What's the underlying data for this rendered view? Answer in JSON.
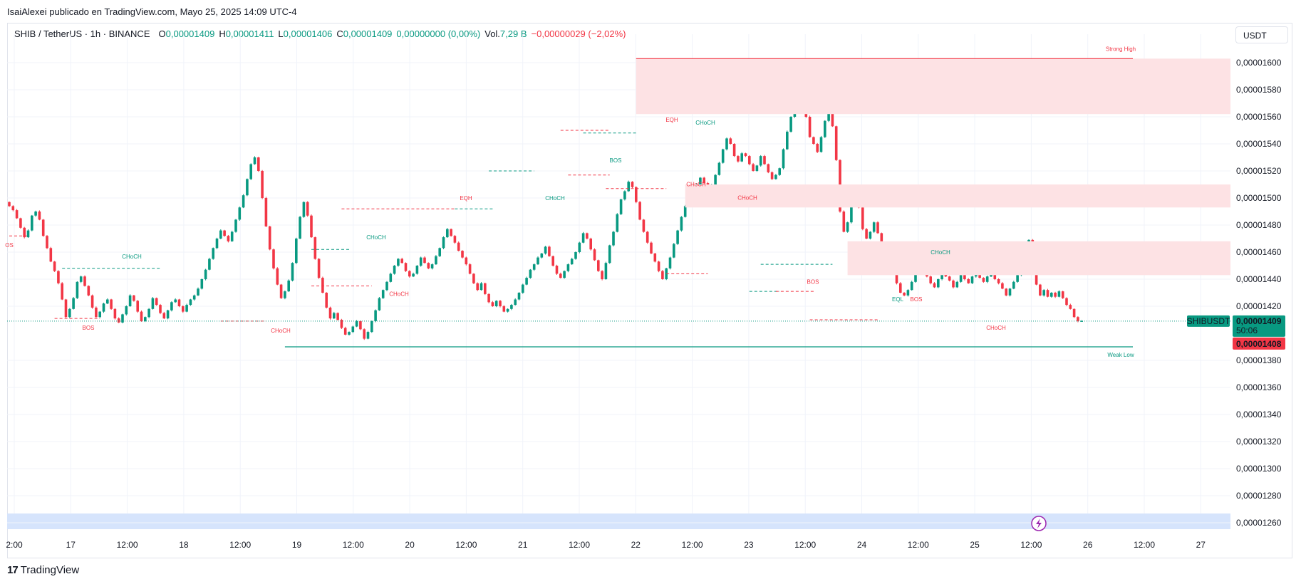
{
  "header": {
    "publisher": "IsaiAlexei publicado en TradingView.com, Mayo 25, 2025 14:09 UTC-4"
  },
  "legend": {
    "symbol": "SHIB / TetherUS · 1h · BINANCE",
    "o_label": "O",
    "o_value": "0,00001409",
    "h_label": "H",
    "h_value": "0,00001411",
    "l_label": "L",
    "l_value": "0,00001406",
    "c_label": "C",
    "c_value": "0,00001409",
    "change": "0,00000000 (0,00%)",
    "vol_label": "Vol.",
    "vol_value": "7,29 B",
    "period_change": "−0,00000029 (−2,02%)"
  },
  "toolbar": {
    "currency": "USDT"
  },
  "footer": {
    "logo_text": "TradingView",
    "logo_mark": "17"
  },
  "colors": {
    "up": "#089981",
    "down": "#f23645",
    "supply_zone": "#fde2e4",
    "session_band": "#d6e4fc",
    "grid": "#f0f3fa",
    "text": "#131722",
    "last_price_bg": "#089981",
    "prev_close_bg": "#f23645"
  },
  "chart_data": {
    "type": "candlestick",
    "title": "SHIB / TetherUS · 1h · BINANCE",
    "xlabel": "",
    "ylabel": "",
    "price_axis_ticks": [
      "0,00001600",
      "0,00001580",
      "0,00001560",
      "0,00001540",
      "0,00001520",
      "0,00001500",
      "0,00001480",
      "0,00001460",
      "0,00001440",
      "0,00001420",
      "0,00001380",
      "0,00001360",
      "0,00001340",
      "0,00001320",
      "0,00001300",
      "0,00001280",
      "0,00001260"
    ],
    "ylim": [
      1.251e-05,
      1.611e-05
    ],
    "time_axis_ticks": [
      "2:00",
      "17",
      "12:00",
      "18",
      "12:00",
      "19",
      "12:00",
      "20",
      "12:00",
      "21",
      "12:00",
      "22",
      "12:00",
      "23",
      "12:00",
      "24",
      "12:00",
      "25",
      "12:00",
      "26",
      "12:00",
      "27"
    ],
    "closes": [
      1.494e-05,
      1.491e-05,
      1.485e-05,
      1.478e-05,
      1.471e-05,
      1.476e-05,
      1.487e-05,
      1.49e-05,
      1.484e-05,
      1.472e-05,
      1.463e-05,
      1.453e-05,
      1.446e-05,
      1.437e-05,
      1.425e-05,
      1.412e-05,
      1.418e-05,
      1.426e-05,
      1.438e-05,
      1.442e-05,
      1.435e-05,
      1.428e-05,
      1.419e-05,
      1.412e-05,
      1.416e-05,
      1.422e-05,
      1.425e-05,
      1.418e-05,
      1.411e-05,
      1.408e-05,
      1.414e-05,
      1.42e-05,
      1.428e-05,
      1.424e-05,
      1.416e-05,
      1.409e-05,
      1.412e-05,
      1.418e-05,
      1.426e-05,
      1.421e-05,
      1.415e-05,
      1.411e-05,
      1.417e-05,
      1.423e-05,
      1.425e-05,
      1.42e-05,
      1.416e-05,
      1.421e-05,
      1.425e-05,
      1.428e-05,
      1.433e-05,
      1.44e-05,
      1.447e-05,
      1.455e-05,
      1.463e-05,
      1.47e-05,
      1.476e-05,
      1.472e-05,
      1.468e-05,
      1.475e-05,
      1.484e-05,
      1.493e-05,
      1.502e-05,
      1.514e-05,
      1.525e-05,
      1.53e-05,
      1.52e-05,
      1.5e-05,
      1.479e-05,
      1.462e-05,
      1.448e-05,
      1.436e-05,
      1.426e-05,
      1.431e-05,
      1.439e-05,
      1.452e-05,
      1.47e-05,
      1.486e-05,
      1.497e-05,
      1.487e-05,
      1.471e-05,
      1.455e-05,
      1.441e-05,
      1.43e-05,
      1.419e-05,
      1.411e-05,
      1.415e-05,
      1.41e-05,
      1.404e-05,
      1.399e-05,
      1.401e-05,
      1.405e-05,
      1.409e-05,
      1.403e-05,
      1.396e-05,
      1.401e-05,
      1.409e-05,
      1.417e-05,
      1.426e-05,
      1.432e-05,
      1.438e-05,
      1.444e-05,
      1.45e-05,
      1.455e-05,
      1.452e-05,
      1.446e-05,
      1.442e-05,
      1.444e-05,
      1.45e-05,
      1.456e-05,
      1.452e-05,
      1.448e-05,
      1.451e-05,
      1.457e-05,
      1.463e-05,
      1.471e-05,
      1.477e-05,
      1.472e-05,
      1.467e-05,
      1.461e-05,
      1.456e-05,
      1.451e-05,
      1.444e-05,
      1.437e-05,
      1.432e-05,
      1.437e-05,
      1.429e-05,
      1.423e-05,
      1.42e-05,
      1.424e-05,
      1.42e-05,
      1.416e-05,
      1.418e-05,
      1.421e-05,
      1.425e-05,
      1.43e-05,
      1.436e-05,
      1.441e-05,
      1.447e-05,
      1.451e-05,
      1.456e-05,
      1.459e-05,
      1.464e-05,
      1.457e-05,
      1.45e-05,
      1.444e-05,
      1.441e-05,
      1.446e-05,
      1.451e-05,
      1.455e-05,
      1.46e-05,
      1.467e-05,
      1.474e-05,
      1.47e-05,
      1.462e-05,
      1.454e-05,
      1.446e-05,
      1.44e-05,
      1.452e-05,
      1.465e-05,
      1.475e-05,
      1.488e-05,
      1.499e-05,
      1.505e-05,
      1.512e-05,
      1.508e-05,
      1.497e-05,
      1.484e-05,
      1.475e-05,
      1.467e-05,
      1.459e-05,
      1.453e-05,
      1.446e-05,
      1.44e-05,
      1.448e-05,
      1.456e-05,
      1.466e-05,
      1.476e-05,
      1.486e-05,
      1.494e-05,
      1.5e-05,
      1.505e-05,
      1.51e-05,
      1.515e-05,
      1.511e-05,
      1.506e-05,
      1.51e-05,
      1.517e-05,
      1.526e-05,
      1.536e-05,
      1.544e-05,
      1.54e-05,
      1.531e-05,
      1.527e-05,
      1.533e-05,
      1.531e-05,
      1.525e-05,
      1.52e-05,
      1.524e-05,
      1.531e-05,
      1.525e-05,
      1.519e-05,
      1.514e-05,
      1.517e-05,
      1.522e-05,
      1.536e-05,
      1.549e-05,
      1.56e-05,
      1.572e-05,
      1.588e-05,
      1.579e-05,
      1.56e-05,
      1.545e-05,
      1.54e-05,
      1.534e-05,
      1.545e-05,
      1.557e-05,
      1.569e-05,
      1.553e-05,
      1.528e-05,
      1.49e-05,
      1.475e-05,
      1.482e-05,
      1.498e-05,
      1.502e-05,
      1.493e-05,
      1.477e-05,
      1.47e-05,
      1.475e-05,
      1.482e-05,
      1.474e-05,
      1.463e-05,
      1.453e-05,
      1.45e-05,
      1.445e-05,
      1.437e-05,
      1.43e-05,
      1.428e-05,
      1.432e-05,
      1.438e-05,
      1.445e-05,
      1.45e-05,
      1.446e-05,
      1.442e-05,
      1.437e-05,
      1.434e-05,
      1.44e-05,
      1.445e-05,
      1.442e-05,
      1.439e-05,
      1.434e-05,
      1.438e-05,
      1.443e-05,
      1.44e-05,
      1.437e-05,
      1.442e-05,
      1.444e-05,
      1.441e-05,
      1.438e-05,
      1.442e-05,
      1.444e-05,
      1.44e-05,
      1.437e-05,
      1.433e-05,
      1.428e-05,
      1.433e-05,
      1.438e-05,
      1.443e-05,
      1.448e-05,
      1.452e-05,
      1.469e-05,
      1.448e-05,
      1.436e-05,
      1.428e-05,
      1.432e-05,
      1.427e-05,
      1.43e-05,
      1.427e-05,
      1.431e-05,
      1.426e-05,
      1.421e-05,
      1.418e-05,
      1.412e-05,
      1.409e-05,
      1.409e-05
    ],
    "zones": [
      {
        "label": "Strong High",
        "price_top": 1.603e-05,
        "price_bottom": 1.562e-05
      },
      {
        "price_top": 1.51e-05,
        "price_bottom": 1.493e-05
      },
      {
        "price_top": 1.468e-05,
        "price_bottom": 1.443e-05
      }
    ],
    "levels": [
      {
        "label": "Strong High",
        "price": 1.603e-05,
        "color": "#f23645",
        "style": "solid"
      },
      {
        "label": "Weak Low",
        "price": 1.39e-05,
        "color": "#089981",
        "style": "solid"
      }
    ],
    "structure_labels": [
      {
        "text": "BOS",
        "color": "#f23645"
      },
      {
        "text": "CHoCH",
        "color": "#089981"
      },
      {
        "text": "BOS",
        "color": "#f23645"
      },
      {
        "text": "CHoCH",
        "color": "#f23645"
      },
      {
        "text": "CHoCH",
        "color": "#089981"
      },
      {
        "text": "CHoCH",
        "color": "#f23645"
      },
      {
        "text": "EQH",
        "color": "#f23645"
      },
      {
        "text": "CHoCH",
        "color": "#089981"
      },
      {
        "text": "BOS",
        "color": "#089981"
      },
      {
        "text": "EQH",
        "color": "#f23645"
      },
      {
        "text": "CHoCH",
        "color": "#089981"
      },
      {
        "text": "CHoCH",
        "color": "#f23645"
      },
      {
        "text": "CHoCH",
        "color": "#f23645"
      },
      {
        "text": "BOS",
        "color": "#f23645"
      },
      {
        "text": "CHoCH",
        "color": "#089981"
      },
      {
        "text": "EQL",
        "color": "#089981"
      },
      {
        "text": "BOS",
        "color": "#f23645"
      },
      {
        "text": "CHoCH",
        "color": "#f23645"
      },
      {
        "text": "OS",
        "color": "#f23645"
      }
    ],
    "last_price": {
      "symbol": "SHIBUSDT",
      "value": "0,00001409",
      "countdown": "50:06",
      "price": 1.409e-05
    },
    "prev_close": {
      "value": "0,00001408",
      "price": 1.408e-05
    },
    "grid": true
  }
}
